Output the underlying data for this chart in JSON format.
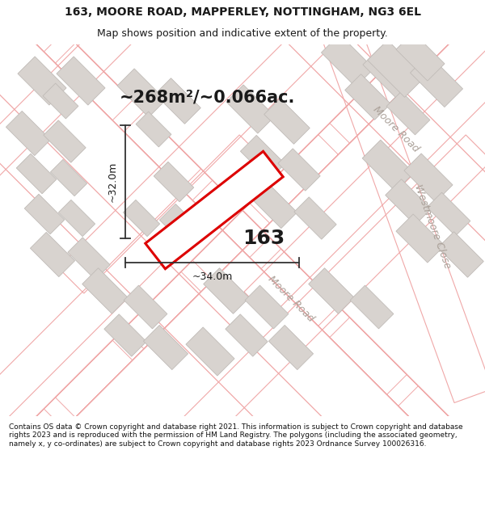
{
  "title_line1": "163, MOORE ROAD, MAPPERLEY, NOTTINGHAM, NG3 6EL",
  "title_line2": "Map shows position and indicative extent of the property.",
  "area_text": "~268m²/~0.066ac.",
  "property_number": "163",
  "dim_width": "~34.0m",
  "dim_height": "~32.0m",
  "road_label_mr1": "Moore Road",
  "road_label_mr2": "Moore Road",
  "road_label_wc": "Westmoore Close",
  "copyright_text": "Contains OS data © Crown copyright and database right 2021. This information is subject to Crown copyright and database rights 2023 and is reproduced with the permission of HM Land Registry. The polygons (including the associated geometry, namely x, y co-ordinates) are subject to Crown copyright and database rights 2023 Ordnance Survey 100026316.",
  "map_bg": "#f5f0ed",
  "property_fill": "#ffffff",
  "property_edge": "#dd0000",
  "building_fill": "#d8d3cf",
  "building_edge": "#c0bbb7",
  "road_line_color": "#f0a8a8",
  "dim_line_color": "#333333",
  "text_color": "#1a1a1a",
  "road_text_color": "#aaa098",
  "title_fontsize": 10,
  "subtitle_fontsize": 9,
  "area_fontsize": 15,
  "dim_fontsize": 9,
  "label_fontsize": 9,
  "number_fontsize": 18,
  "copyright_fontsize": 6.5
}
